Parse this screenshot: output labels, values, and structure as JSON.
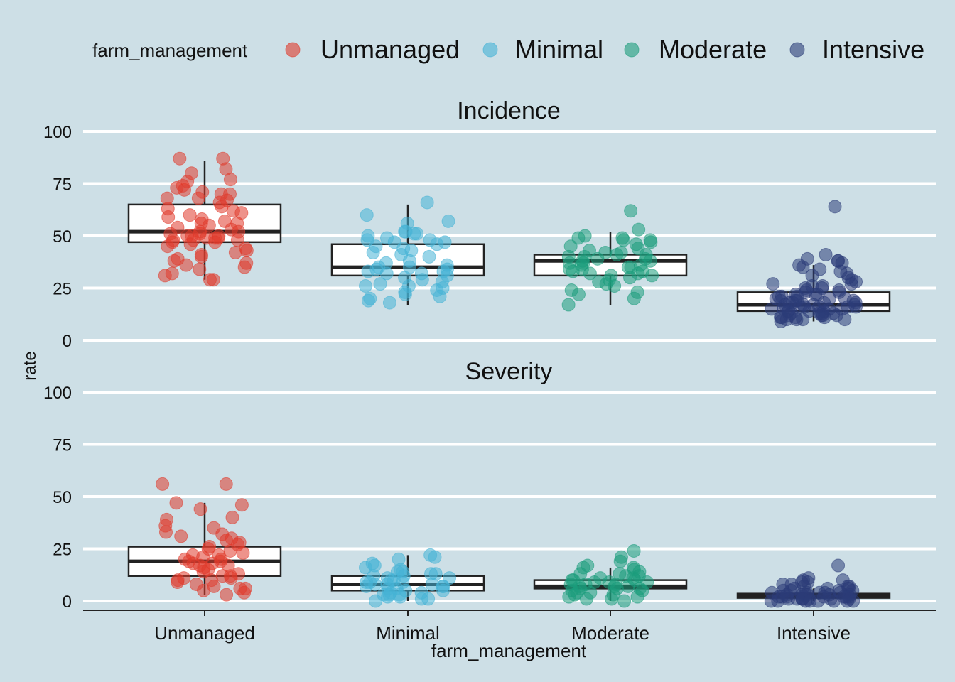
{
  "chart_data": {
    "type": "box",
    "xlabel": "farm_management",
    "ylabel": "rate",
    "categories": [
      "Unmanaged",
      "Minimal",
      "Moderate",
      "Intensive"
    ],
    "ylim": [
      0,
      100
    ],
    "yticks": [
      0,
      25,
      50,
      75,
      100
    ],
    "legend": {
      "title": "farm_management",
      "position": "top",
      "entries": [
        "Unmanaged",
        "Minimal",
        "Moderate",
        "Intensive"
      ]
    },
    "colors": {
      "Unmanaged": "#e03a2c",
      "Minimal": "#45b2d6",
      "Moderate": "#1c9c7c",
      "Intensive": "#2b3d78",
      "background": "#cddfe6",
      "grid": "#ffffff",
      "box_fill": "#ffffff",
      "box_stroke": "#222222"
    },
    "grid": true,
    "facets": [
      {
        "title": "Incidence",
        "boxes": [
          {
            "category": "Unmanaged",
            "q1": 47,
            "median": 52,
            "q3": 65,
            "whisker_low": 29,
            "whisker_high": 86
          },
          {
            "category": "Minimal",
            "q1": 31,
            "median": 35,
            "q3": 46,
            "whisker_low": 17,
            "whisker_high": 65
          },
          {
            "category": "Moderate",
            "q1": 31,
            "median": 38,
            "q3": 41,
            "whisker_low": 17,
            "whisker_high": 52
          },
          {
            "category": "Intensive",
            "q1": 14,
            "median": 17,
            "q3": 23,
            "whisker_low": 9,
            "whisker_high": 36
          }
        ],
        "points": {
          "Unmanaged": [
            87,
            87,
            82,
            80,
            77,
            76,
            74,
            73,
            72,
            71,
            70,
            70,
            68,
            68,
            67,
            66,
            64,
            63,
            62,
            61,
            60,
            59,
            58,
            57,
            56,
            56,
            55,
            54,
            53,
            52,
            52,
            51,
            51,
            50,
            50,
            50,
            49,
            49,
            49,
            48,
            48,
            48,
            47,
            47,
            46,
            45,
            44,
            43,
            42,
            41,
            40,
            39,
            38,
            37,
            36,
            35,
            34,
            32,
            31,
            29,
            29
          ],
          "Minimal": [
            66,
            60,
            57,
            56,
            52,
            52,
            51,
            51,
            50,
            49,
            48,
            48,
            47,
            47,
            46,
            45,
            44,
            43,
            42,
            41,
            40,
            38,
            37,
            36,
            35,
            35,
            34,
            34,
            33,
            33,
            32,
            32,
            31,
            30,
            29,
            28,
            27,
            26,
            26,
            25,
            24,
            23,
            22,
            21,
            20,
            19,
            18
          ],
          "Moderate": [
            62,
            53,
            50,
            49,
            49,
            48,
            48,
            47,
            46,
            45,
            44,
            43,
            42,
            42,
            41,
            41,
            40,
            40,
            39,
            39,
            38,
            38,
            37,
            37,
            36,
            36,
            35,
            35,
            34,
            34,
            33,
            33,
            32,
            32,
            31,
            31,
            30,
            29,
            28,
            27,
            26,
            24,
            23,
            22,
            20,
            17
          ],
          "Intensive": [
            64,
            41,
            39,
            38,
            38,
            37,
            36,
            35,
            34,
            33,
            32,
            31,
            30,
            29,
            28,
            27,
            27,
            26,
            26,
            25,
            25,
            24,
            24,
            23,
            23,
            22,
            22,
            22,
            21,
            21,
            21,
            20,
            20,
            20,
            19,
            19,
            19,
            19,
            18,
            18,
            18,
            18,
            17,
            17,
            17,
            17,
            16,
            16,
            16,
            16,
            16,
            15,
            15,
            15,
            15,
            14,
            14,
            14,
            14,
            13,
            13,
            13,
            13,
            12,
            12,
            12,
            12,
            11,
            11,
            11,
            11,
            10,
            10,
            10,
            10,
            9
          ]
        }
      },
      {
        "title": "Severity",
        "boxes": [
          {
            "category": "Unmanaged",
            "q1": 12,
            "median": 19,
            "q3": 26,
            "whisker_low": 3,
            "whisker_high": 47
          },
          {
            "category": "Minimal",
            "q1": 5,
            "median": 8,
            "q3": 12,
            "whisker_low": 0,
            "whisker_high": 22
          },
          {
            "category": "Moderate",
            "q1": 6,
            "median": 7,
            "q3": 10,
            "whisker_low": 0,
            "whisker_high": 16
          },
          {
            "category": "Intensive",
            "q1": 1.5,
            "median": 2.5,
            "q3": 3.5,
            "whisker_low": 0,
            "whisker_high": 6
          }
        ],
        "points": {
          "Unmanaged": [
            56,
            56,
            47,
            46,
            44,
            40,
            39,
            36,
            35,
            33,
            32,
            31,
            30,
            29,
            28,
            27,
            26,
            25,
            24,
            23,
            22,
            22,
            21,
            20,
            20,
            19,
            19,
            18,
            18,
            17,
            17,
            16,
            15,
            14,
            13,
            12,
            12,
            11,
            11,
            10,
            10,
            9,
            8,
            7,
            6,
            6,
            5,
            4,
            3
          ],
          "Minimal": [
            22,
            21,
            20,
            18,
            17,
            16,
            15,
            14,
            14,
            13,
            13,
            12,
            12,
            11,
            11,
            10,
            10,
            9,
            9,
            9,
            8,
            8,
            8,
            7,
            7,
            7,
            6,
            6,
            5,
            5,
            4,
            4,
            3,
            3,
            3,
            2,
            2,
            1,
            1,
            0
          ],
          "Moderate": [
            24,
            21,
            19,
            17,
            16,
            16,
            15,
            14,
            13,
            13,
            12,
            12,
            11,
            11,
            10,
            10,
            10,
            9,
            9,
            9,
            8,
            8,
            8,
            7,
            7,
            7,
            6,
            6,
            6,
            5,
            5,
            4,
            4,
            3,
            3,
            2,
            2,
            1,
            1,
            0
          ],
          "Intensive": [
            17,
            11,
            10,
            10,
            9,
            9,
            8,
            8,
            7,
            7,
            7,
            6,
            6,
            6,
            5,
            5,
            5,
            5,
            4,
            4,
            4,
            4,
            4,
            3,
            3,
            3,
            3,
            3,
            3,
            2,
            2,
            2,
            2,
            2,
            2,
            2,
            1,
            1,
            1,
            1,
            1,
            1,
            1,
            1,
            0,
            0,
            0,
            0,
            0,
            0,
            0,
            0
          ]
        }
      }
    ]
  }
}
